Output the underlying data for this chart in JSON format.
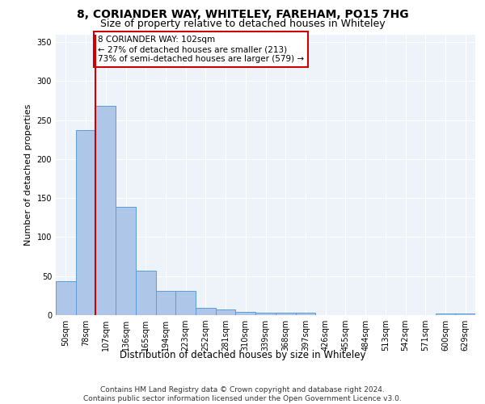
{
  "title1": "8, CORIANDER WAY, WHITELEY, FAREHAM, PO15 7HG",
  "title2": "Size of property relative to detached houses in Whiteley",
  "xlabel": "Distribution of detached houses by size in Whiteley",
  "ylabel": "Number of detached properties",
  "categories": [
    "50sqm",
    "78sqm",
    "107sqm",
    "136sqm",
    "165sqm",
    "194sqm",
    "223sqm",
    "252sqm",
    "281sqm",
    "310sqm",
    "339sqm",
    "368sqm",
    "397sqm",
    "426sqm",
    "455sqm",
    "484sqm",
    "513sqm",
    "542sqm",
    "571sqm",
    "600sqm",
    "629sqm"
  ],
  "values": [
    44,
    237,
    268,
    139,
    57,
    31,
    31,
    9,
    7,
    4,
    3,
    3,
    3,
    0,
    0,
    0,
    0,
    0,
    0,
    2,
    2
  ],
  "bar_color": "#aec6e8",
  "bar_edge_color": "#5b9bd5",
  "annotation_text": "8 CORIANDER WAY: 102sqm\n← 27% of detached houses are smaller (213)\n73% of semi-detached houses are larger (579) →",
  "annotation_box_color": "#ffffff",
  "annotation_border_color": "#cc0000",
  "red_line_x": 1.5,
  "ylim": [
    0,
    360
  ],
  "yticks": [
    0,
    50,
    100,
    150,
    200,
    250,
    300,
    350
  ],
  "footer_line1": "Contains HM Land Registry data © Crown copyright and database right 2024.",
  "footer_line2": "Contains public sector information licensed under the Open Government Licence v3.0.",
  "bg_color": "#eef3fa",
  "grid_color": "#ffffff",
  "title1_fontsize": 10,
  "title2_fontsize": 9,
  "xlabel_fontsize": 8.5,
  "ylabel_fontsize": 8,
  "tick_fontsize": 7,
  "footer_fontsize": 6.5,
  "annotation_fontsize": 7.5
}
